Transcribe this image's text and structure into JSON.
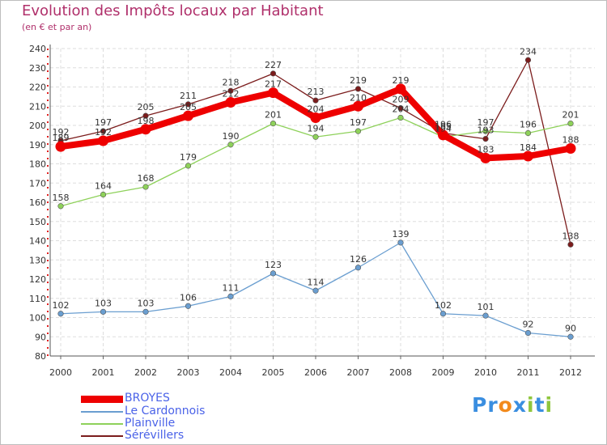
{
  "chart_data": {
    "type": "line",
    "title": "Evolution des Impôts locaux par Habitant",
    "subtitle": "(en € et par an)",
    "xlabel": "",
    "ylabel": "",
    "ylim": [
      80,
      240
    ],
    "ytick_step": 10,
    "grid": true,
    "legend_position": "bottom-left",
    "x": [
      "2000",
      "2001",
      "2002",
      "2003",
      "2004",
      "2005",
      "2006",
      "2007",
      "2008",
      "2009",
      "2010",
      "2011",
      "2012"
    ],
    "series": [
      {
        "name": "Sérévillers",
        "color": "#7b1c1c",
        "values": [
          192,
          197,
          205,
          211,
          218,
          227,
          213,
          219,
          209,
          196,
          193,
          234,
          138
        ]
      },
      {
        "name": "Plainville",
        "color": "#8ed15a",
        "values": [
          158,
          164,
          168,
          179,
          190,
          201,
          194,
          197,
          204,
          194,
          197,
          196,
          201
        ]
      },
      {
        "name": "Le Cardonnois",
        "color": "#6a9ed0",
        "values": [
          102,
          103,
          103,
          106,
          111,
          123,
          114,
          126,
          139,
          102,
          101,
          92,
          90
        ]
      },
      {
        "name": "BROYES",
        "color": "#ee0000",
        "values": [
          189,
          192,
          198,
          205,
          212,
          217,
          204,
          210,
          219,
          195,
          183,
          184,
          188
        ]
      }
    ]
  },
  "legend": [
    {
      "label": "BROYES",
      "color": "#ee0000"
    },
    {
      "label": "Le Cardonnois",
      "color": "#6a9ed0"
    },
    {
      "label": "Plainville",
      "color": "#8ed15a"
    },
    {
      "label": "Sérévillers",
      "color": "#7b1c1c"
    }
  ],
  "brand": {
    "letters": [
      "P",
      "r",
      "o",
      "x",
      "i",
      "t",
      "i"
    ],
    "colors": [
      "#3a8ee0",
      "#3a8ee0",
      "#f28a1c",
      "#3a8ee0",
      "#8fc63d",
      "#3a8ee0",
      "#8fc63d"
    ]
  }
}
